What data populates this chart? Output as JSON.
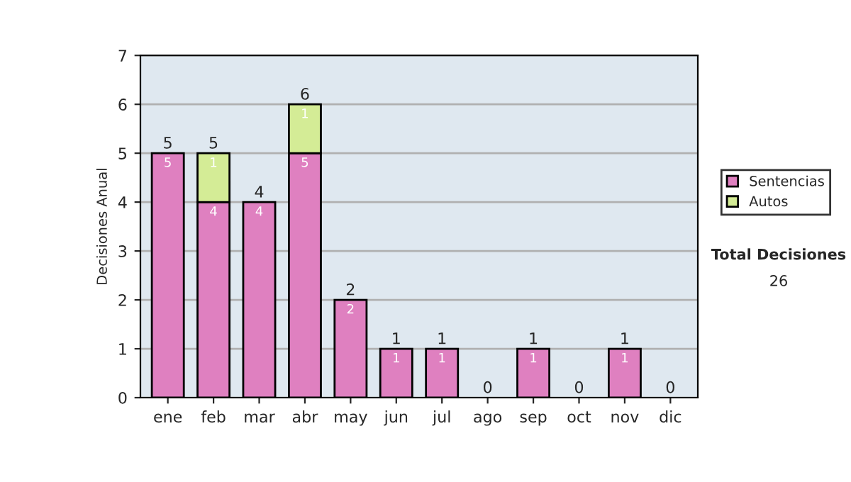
{
  "chart_data": {
    "type": "bar",
    "ylabel": "Decisiones Anual",
    "categories": [
      "ene",
      "feb",
      "mar",
      "abr",
      "may",
      "jun",
      "jul",
      "ago",
      "sep",
      "oct",
      "nov",
      "dic"
    ],
    "stacked": true,
    "series": [
      {
        "name": "Sentencias",
        "color": "#df80c0",
        "values": [
          5,
          4,
          4,
          5,
          2,
          1,
          1,
          0,
          1,
          0,
          1,
          0
        ],
        "value_labels": [
          "5",
          "4",
          "4",
          "5",
          "2",
          "1",
          "1",
          null,
          "1",
          null,
          "1",
          null
        ]
      },
      {
        "name": "Autos",
        "color": "#d4ec96",
        "values": [
          0,
          1,
          0,
          1,
          0,
          0,
          0,
          0,
          0,
          0,
          0,
          0
        ],
        "value_labels": [
          null,
          "1",
          null,
          "1",
          null,
          null,
          null,
          null,
          null,
          null,
          null,
          null
        ]
      }
    ],
    "totals": [
      "5",
      "5",
      "4",
      "6",
      "2",
      "1",
      "1",
      "0",
      "1",
      "0",
      "1",
      "0"
    ],
    "ylim": [
      0,
      7
    ],
    "yticks": [
      0,
      1,
      2,
      3,
      4,
      5,
      6,
      7
    ],
    "grid": "y",
    "legend": "right",
    "annotations": [
      "Total Decisiones",
      "26"
    ]
  }
}
